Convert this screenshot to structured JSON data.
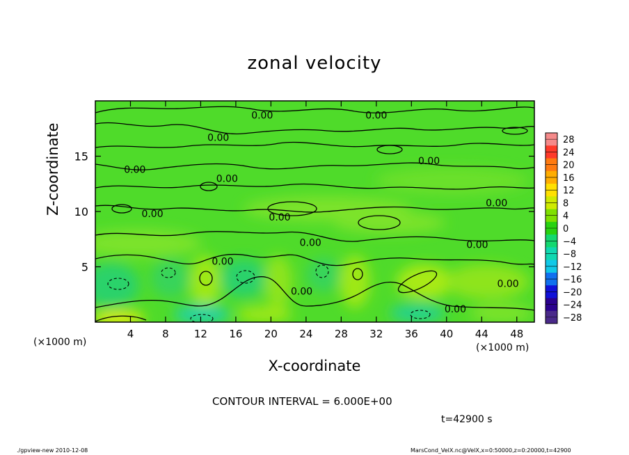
{
  "chart_data": {
    "type": "heatmap",
    "title": "zonal velocity",
    "xlabel": "X-coordinate",
    "ylabel": "Z-coordinate",
    "x_unit": "(×1000 m)",
    "xlim": [
      0,
      50
    ],
    "ylim": [
      0,
      20
    ],
    "x_ticks": [
      4,
      8,
      12,
      16,
      20,
      24,
      28,
      32,
      36,
      40,
      44,
      48
    ],
    "y_ticks": [
      5,
      10,
      15
    ],
    "colorbar": {
      "levels": [
        28,
        24,
        20,
        16,
        12,
        8,
        4,
        0,
        -4,
        -8,
        -12,
        -16,
        -20,
        -24,
        -28
      ],
      "colors": [
        "#f58a8a",
        "#ff3a2a",
        "#ff7a10",
        "#ffad00",
        "#ffe000",
        "#cfea00",
        "#7fe000",
        "#28d210",
        "#14d870",
        "#10d8b0",
        "#10c8e8",
        "#1070ee",
        "#1010d8",
        "#2a008e",
        "#4a2a8a"
      ]
    },
    "contour_labels": [
      {
        "text": "0.00",
        "x": 19.0,
        "z": 18.7
      },
      {
        "text": "0.00",
        "x": 32.0,
        "z": 18.7
      },
      {
        "text": "0.00",
        "x": 14.0,
        "z": 16.7
      },
      {
        "text": "0.00",
        "x": 4.5,
        "z": 13.8
      },
      {
        "text": "0.00",
        "x": 38.0,
        "z": 14.6
      },
      {
        "text": "0.00",
        "x": 15.0,
        "z": 13.0
      },
      {
        "text": "0.00",
        "x": 45.7,
        "z": 10.8
      },
      {
        "text": "0.00",
        "x": 6.5,
        "z": 9.8
      },
      {
        "text": "0.00",
        "x": 21.0,
        "z": 9.5
      },
      {
        "text": "0.00",
        "x": 24.5,
        "z": 7.2
      },
      {
        "text": "0.00",
        "x": 43.5,
        "z": 7.0
      },
      {
        "text": "0.00",
        "x": 14.5,
        "z": 5.5
      },
      {
        "text": "0.00",
        "x": 23.5,
        "z": 2.8
      },
      {
        "text": "0.00",
        "x": 47.0,
        "z": 3.5
      },
      {
        "text": "0.00",
        "x": 41.0,
        "z": 1.2
      }
    ],
    "grid": false,
    "legend": "right"
  },
  "annotations": {
    "contour_interval": "CONTOUR INTERVAL = 6.000E+00",
    "time": "t=42900 s",
    "footer_left": "./gpview-new  2010-12-08",
    "footer_right": "MarsCond_VelX.nc@VelX,x=0:50000,z=0:20000,t=42900"
  }
}
